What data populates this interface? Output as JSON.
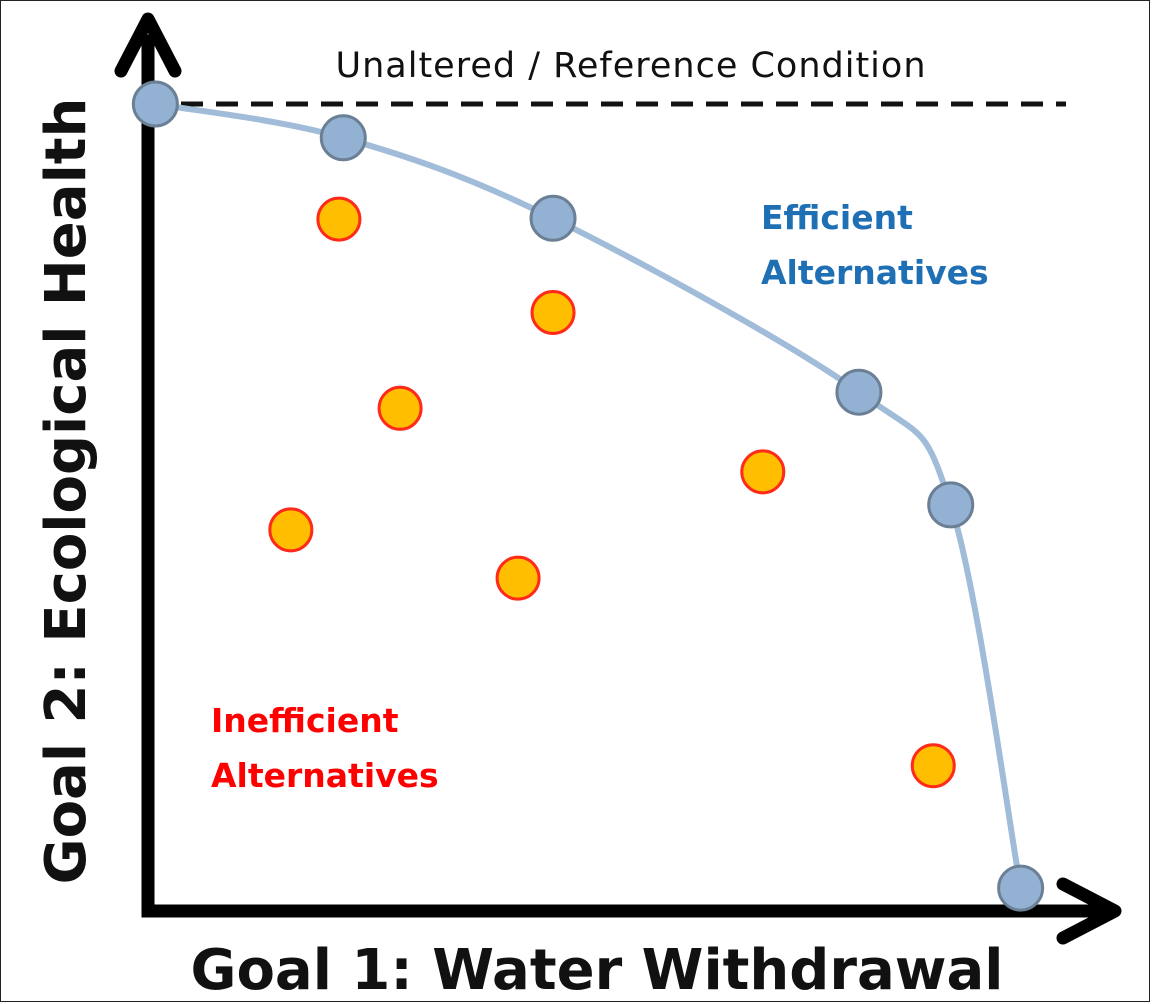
{
  "chart_data": {
    "type": "scatter",
    "xlabel": "Goal 1: Water Withdrawal",
    "ylabel": "Goal 2: Ecological Health",
    "xlim": [
      0,
      100
    ],
    "ylim": [
      0,
      100
    ],
    "grid": false,
    "reference_line": {
      "label": "Unaltered / Reference Condition",
      "y": 100,
      "style": "dashed"
    },
    "series": [
      {
        "name": "Efficient Alternatives",
        "color": "#1f6fb4",
        "marker_fill": "#93b1d2",
        "marker_stroke": "#6b7f95",
        "curve_color": "#a1bcd9",
        "connected": true,
        "points": [
          {
            "x": 0.5,
            "y": 100
          },
          {
            "x": 22,
            "y": 95.8
          },
          {
            "x": 46,
            "y": 85.8
          },
          {
            "x": 81,
            "y": 64.2
          },
          {
            "x": 91.5,
            "y": 50.2
          },
          {
            "x": 99.5,
            "y": 2.6
          }
        ]
      },
      {
        "name": "Inefficient Alternatives",
        "color": "#ff0000",
        "marker_fill": "#ffbe00",
        "marker_stroke": "#ff2a1a",
        "connected": false,
        "points": [
          {
            "x": 21.5,
            "y": 85.7
          },
          {
            "x": 46,
            "y": 74.1
          },
          {
            "x": 28.5,
            "y": 62.2
          },
          {
            "x": 70,
            "y": 54.3
          },
          {
            "x": 16,
            "y": 47.1
          },
          {
            "x": 42,
            "y": 41.1
          },
          {
            "x": 89.5,
            "y": 17.8
          }
        ]
      }
    ]
  }
}
